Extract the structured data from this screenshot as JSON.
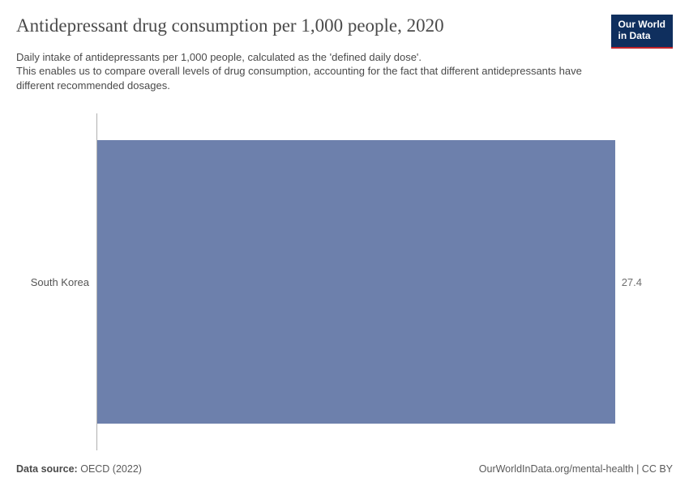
{
  "header": {
    "title": "Antidepressant drug consumption per 1,000 people, 2020",
    "subtitle": "Daily intake of antidepressants per 1,000 people, calculated as the 'defined daily dose'.\nThis enables us to compare overall levels of drug consumption, accounting for the fact that different antidepressants have different recommended dosages.",
    "logo_line1": "Our World",
    "logo_line2": "in Data",
    "logo_bg": "#0f2f5e",
    "logo_underline": "#c1242a"
  },
  "chart": {
    "type": "bar-horizontal",
    "xlim": [
      0,
      27.4
    ],
    "axis_color": "#b0b0b0",
    "background_color": "#ffffff",
    "bar_fill": "#6d80ac",
    "value_color": "#6f6f6f",
    "label_color": "#555555",
    "label_fontsize": 13,
    "value_fontsize": 13,
    "bar_top_pct": 8,
    "bar_height_pct": 84,
    "bars": [
      {
        "label": "South Korea",
        "value": 27.4
      }
    ]
  },
  "footer": {
    "source_label": "Data source:",
    "source_value": "OECD (2022)",
    "right": "OurWorldInData.org/mental-health | CC BY"
  }
}
